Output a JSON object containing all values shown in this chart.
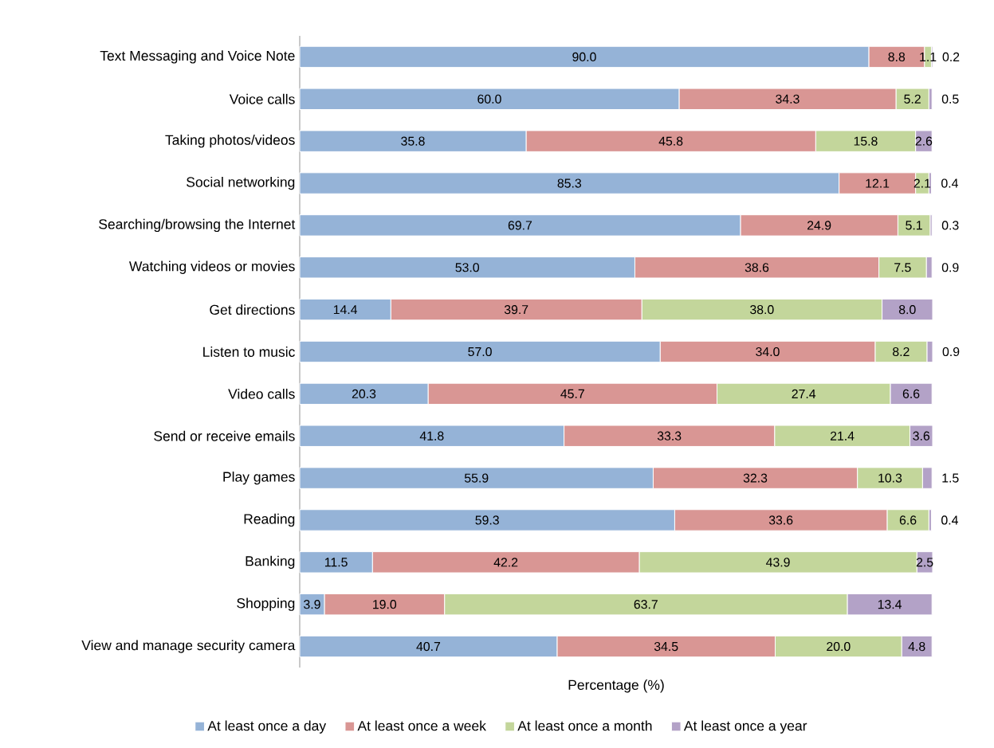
{
  "chart_data": {
    "type": "bar",
    "orientation": "horizontal",
    "stacked": true,
    "legend": "bottom",
    "xlabel": "Percentage (%)",
    "categories": [
      "Text Messaging and Voice Note",
      "Voice calls",
      "Taking photos/videos",
      "Social networking",
      "Searching/browsing the Internet",
      "Watching videos or movies",
      "Get directions",
      "Listen to music",
      "Video calls",
      "Send or receive emails",
      "Play games",
      "Reading",
      "Banking",
      "Shopping",
      "View and manage security camera"
    ],
    "series": [
      {
        "name": "At least once a day",
        "color": "#95b3d7",
        "values": [
          90.0,
          60.0,
          35.8,
          85.3,
          69.7,
          53.0,
          14.4,
          57.0,
          20.3,
          41.8,
          55.9,
          59.3,
          11.5,
          3.9,
          40.7
        ],
        "value_labels": [
          "90.0",
          "60.0",
          "35.8",
          "85.3",
          "69.7",
          "53.0",
          "14.4",
          "57.0",
          "20.3",
          "41.8",
          "55.9",
          "59.3",
          "11.5",
          "3.9",
          "40.7"
        ]
      },
      {
        "name": "At least once a week",
        "color": "#d99694",
        "values": [
          8.8,
          34.3,
          45.8,
          12.1,
          24.9,
          38.6,
          39.7,
          34.0,
          45.7,
          33.3,
          32.3,
          33.6,
          42.2,
          19.0,
          34.5
        ],
        "value_labels": [
          "8.8",
          "34.3",
          "45.8",
          "12.1",
          "24.9",
          "38.6",
          "39.7",
          "34.0",
          "45.7",
          "33.3",
          "32.3",
          "33.6",
          "42.2",
          "19.0",
          "34.5"
        ]
      },
      {
        "name": "At least once a month",
        "color": "#c3d69b",
        "values": [
          1.1,
          5.2,
          15.8,
          2.1,
          5.1,
          7.5,
          38.0,
          8.2,
          27.4,
          21.4,
          10.3,
          6.6,
          43.9,
          63.7,
          20.0
        ],
        "value_labels": [
          "1.1",
          "5.2",
          "15.8",
          "2.1",
          "5.1",
          "7.5",
          "38.0",
          "8.2",
          "27.4",
          "21.4",
          "10.3",
          "6.6",
          "43.9",
          "63.7",
          "20.0"
        ]
      },
      {
        "name": "At least once a year",
        "color": "#b3a2c7",
        "values": [
          0.2,
          0.5,
          2.6,
          0.4,
          0.3,
          0.9,
          8.0,
          0.9,
          6.6,
          3.6,
          1.5,
          0.4,
          2.5,
          13.4,
          4.8
        ],
        "value_labels": [
          "0.2",
          "0.5",
          "2.6",
          "0.4",
          "0.3",
          "0.9",
          "8.0",
          "0.9",
          "6.6",
          "3.6",
          "1.5",
          "0.4",
          "2.5",
          "13.4",
          "4.8"
        ]
      }
    ]
  }
}
